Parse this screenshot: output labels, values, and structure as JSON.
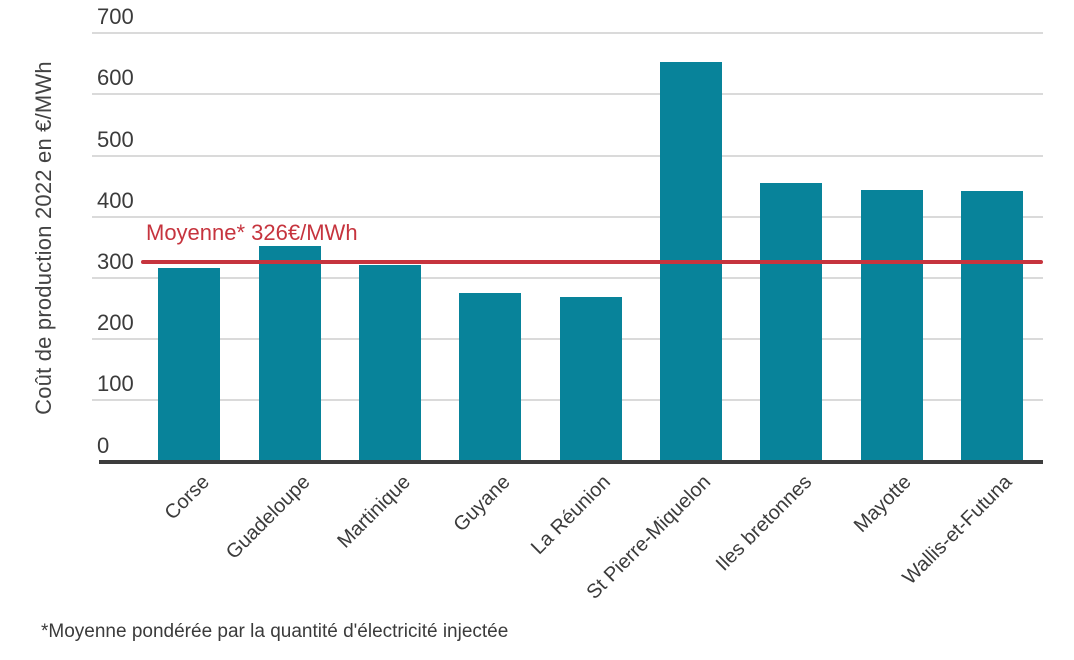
{
  "chart_data": {
    "type": "bar",
    "title": "",
    "ylabel": "Coût de production 2022 en €/MWh",
    "xlabel": "",
    "categories": [
      "Corse",
      "Guadeloupe",
      "Martinique",
      "Guyane",
      "La Réunion",
      "St Pierre-Miquelon",
      "Iles bretonnes",
      "Mayotte",
      "Wallis-et-Futuna"
    ],
    "values": [
      316,
      352,
      321,
      275,
      269,
      653,
      455,
      444,
      442
    ],
    "unit": "€/MWh",
    "ylim": [
      0,
      700
    ],
    "yticks": [
      0,
      100,
      200,
      300,
      400,
      500,
      600,
      700
    ],
    "grid": "horizontal gridlines every 100, legend none",
    "average_line": {
      "label": "Moyenne* 326€/MWh",
      "value": 326
    },
    "footnote": "*Moyenne pondérée par la quantité d'électricité injectée",
    "colors": {
      "bar": "#08839a",
      "average_line": "#c6343e",
      "gridline": "#dadada",
      "axis": "#3d3d3d",
      "text": "#3b3b3b"
    }
  }
}
